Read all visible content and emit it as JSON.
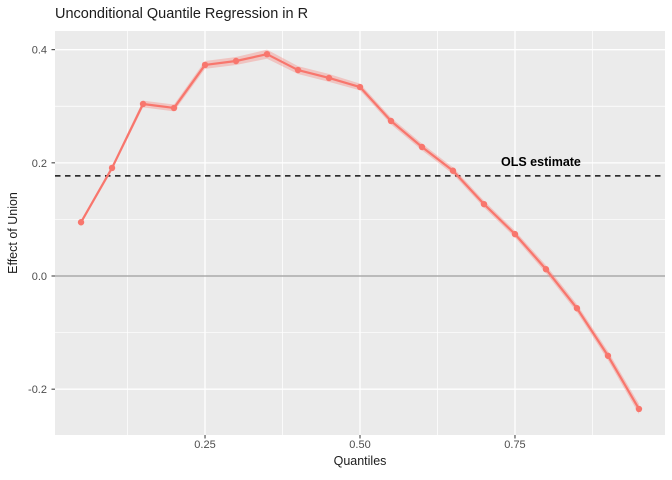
{
  "title": "Unconditional Quantile Regression in R",
  "chart_data": {
    "type": "line",
    "title": "Unconditional Quantile Regression in R",
    "xlabel": "Quantiles",
    "ylabel": "Effect of Union",
    "x": [
      0.05,
      0.1,
      0.15,
      0.2,
      0.25,
      0.3,
      0.35,
      0.4,
      0.45,
      0.5,
      0.55,
      0.6,
      0.65,
      0.7,
      0.75,
      0.8,
      0.85,
      0.9,
      0.95
    ],
    "values": [
      0.095,
      0.191,
      0.304,
      0.297,
      0.373,
      0.38,
      0.392,
      0.364,
      0.35,
      0.334,
      0.274,
      0.228,
      0.186,
      0.127,
      0.074,
      0.012,
      -0.057,
      -0.141,
      -0.235
    ],
    "se": [
      0.004,
      0.004,
      0.006,
      0.006,
      0.007,
      0.007,
      0.008,
      0.007,
      0.007,
      0.006,
      0.006,
      0.006,
      0.006,
      0.006,
      0.006,
      0.007,
      0.007,
      0.008,
      0.009
    ],
    "ols_line": {
      "label": "OLS estimate",
      "value": 0.177,
      "style": "dashed"
    },
    "zero_line_value": 0,
    "x_ticks": [
      0.25,
      0.5,
      0.75
    ],
    "x_tick_labels": [
      "0.25",
      "0.50",
      "0.75"
    ],
    "x_minor_ticks": [
      0.125,
      0.375,
      0.625,
      0.875
    ],
    "y_ticks": [
      0.4,
      0.2,
      0.0,
      -0.2
    ],
    "y_tick_labels": [
      "0.4",
      "0.2",
      "0.0",
      "-0.2"
    ],
    "y_minor_ticks": [
      0.3,
      0.1,
      -0.1
    ],
    "xlim": [
      0.008,
      0.992
    ],
    "ylim": [
      -0.281,
      0.433
    ],
    "grid": true,
    "legend": "none",
    "colors": {
      "line": "#F8766D",
      "point": "#F8766D",
      "ribbon": "rgba(248,118,109,0.33)",
      "panel_bg": "#EBEBEB",
      "grid_major": "#FFFFFF",
      "grid_minor": "#FFFFFF",
      "zero_line": "#9A9A9A",
      "ols_line": "#141414",
      "tick_mark": "#333333",
      "tick_text": "#4D4D4D",
      "text": "#1C1C1C"
    }
  }
}
